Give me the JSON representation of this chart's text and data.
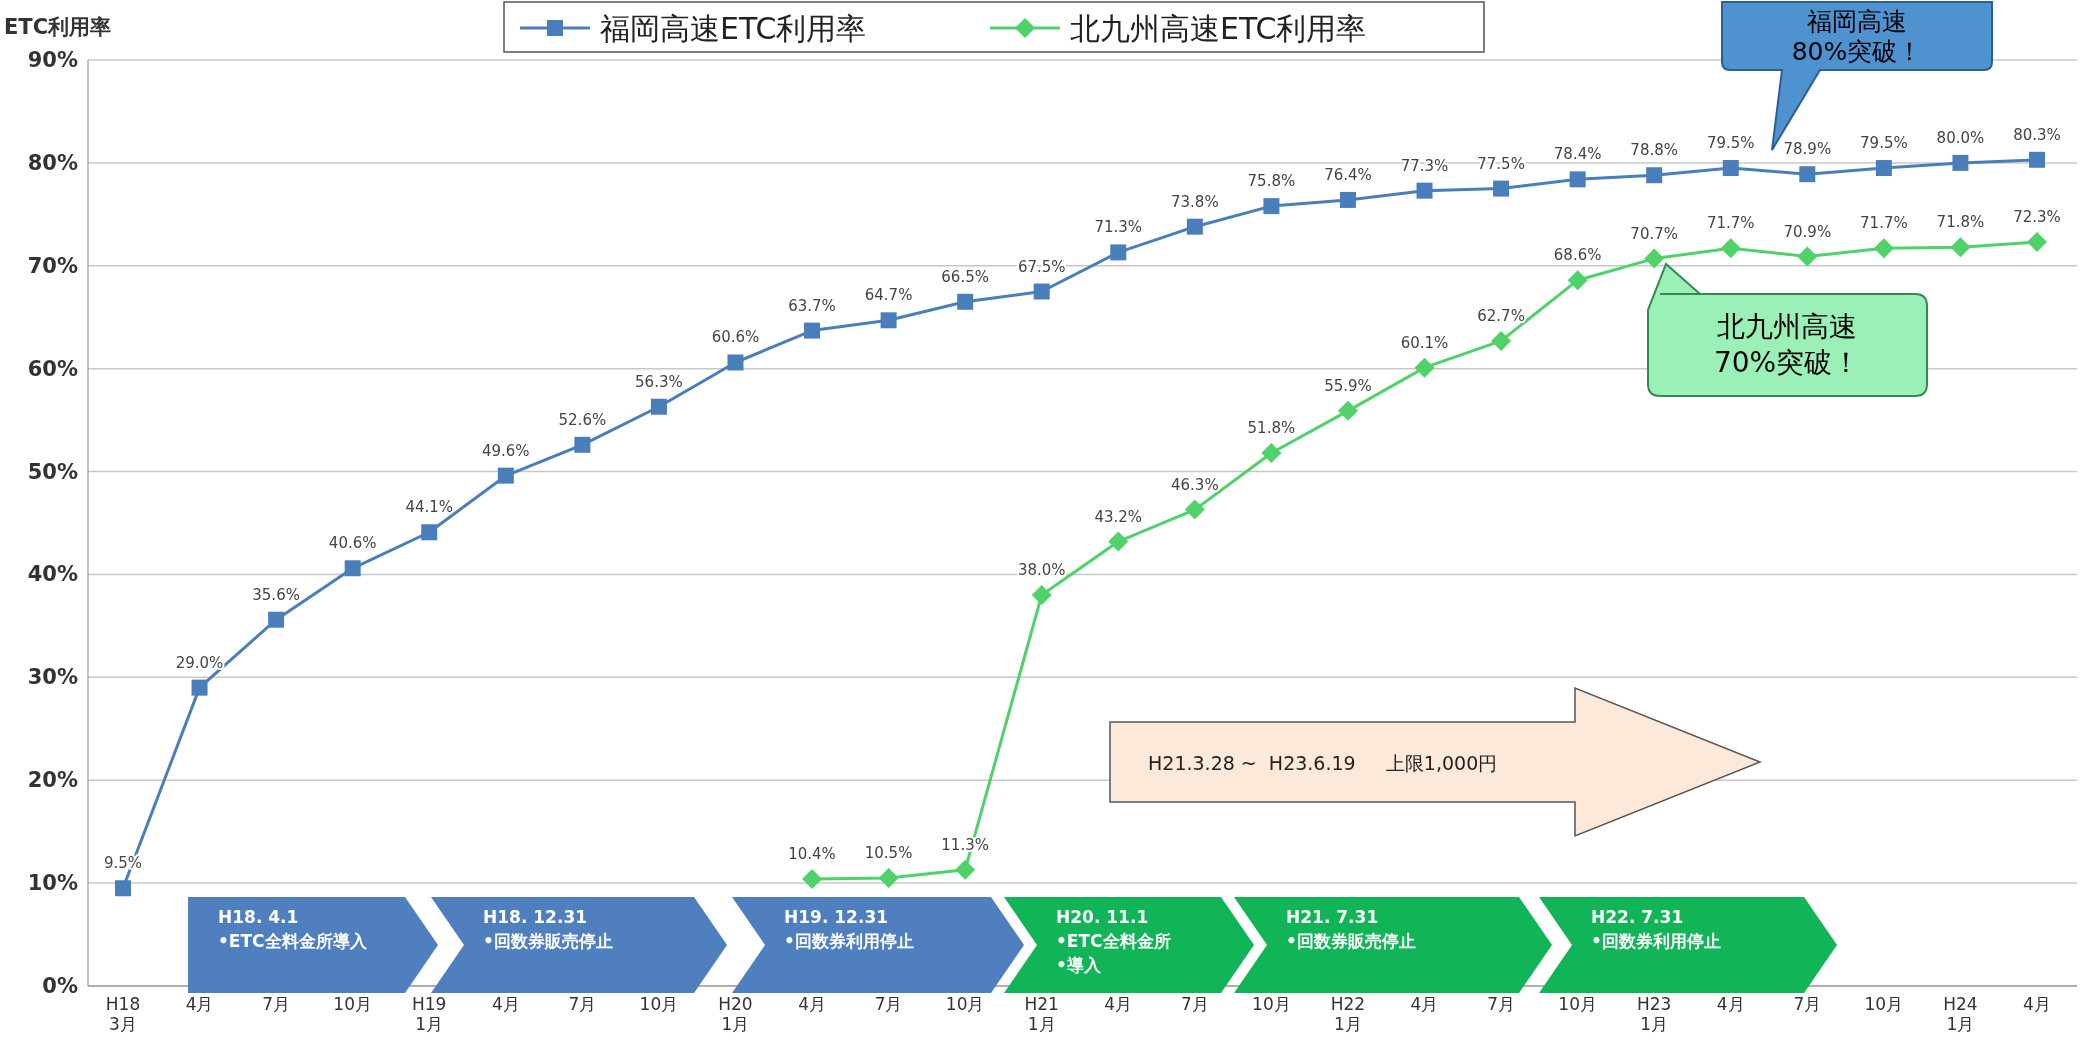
{
  "chart_data": {
    "type": "line",
    "ylabel": "ETC利用率",
    "categories": [
      "H18\n3月",
      "4月",
      "7月",
      "10月",
      "H19\n1月",
      "4月",
      "7月",
      "10月",
      "H20\n1月",
      "4月",
      "7月",
      "10月",
      "H21\n1月",
      "4月",
      "7月",
      "10月",
      "H22\n1月",
      "4月",
      "7月",
      "10月",
      "H23\n1月",
      "4月",
      "7月",
      "10月",
      "H24\n1月",
      "4月"
    ],
    "series": [
      {
        "name": "福岡高速ETC利用率",
        "color": "#4a7ebb",
        "marker": "square",
        "values": [
          9.5,
          29.0,
          35.6,
          40.6,
          44.1,
          49.6,
          52.6,
          56.3,
          60.6,
          63.7,
          64.7,
          66.5,
          67.5,
          71.3,
          73.8,
          75.8,
          76.4,
          77.3,
          77.5,
          78.4,
          78.8,
          79.5,
          78.9,
          79.5,
          80.0,
          80.3
        ],
        "value_labels": [
          "9.5%",
          "29.0%",
          "35.6%",
          "40.6%",
          "44.1%",
          "49.6%",
          "52.6%",
          "56.3%",
          "60.6%",
          "63.7%",
          "64.7%",
          "66.5%",
          "67.5%",
          "71.3%",
          "73.8%",
          "75.8%",
          "76.4%",
          "77.3%",
          "77.5%",
          "78.4%",
          "78.8%",
          "79.5%",
          "78.9%",
          "79.5%",
          "80.0%",
          "80.3%"
        ]
      },
      {
        "name": "北九州高速ETC利用率",
        "color": "#4fd26a",
        "marker": "diamond",
        "values": [
          null,
          null,
          null,
          null,
          null,
          null,
          null,
          null,
          null,
          10.4,
          10.5,
          11.3,
          38.0,
          43.2,
          46.3,
          51.8,
          55.9,
          60.1,
          62.7,
          68.6,
          70.7,
          71.7,
          70.9,
          71.7,
          71.8,
          72.3
        ],
        "value_labels": [
          null,
          null,
          null,
          null,
          null,
          null,
          null,
          null,
          null,
          "10.4%",
          "10.5%",
          "11.3%",
          "38.0%",
          "43.2%",
          "46.3%",
          "51.8%",
          "55.9%",
          "60.1%",
          "62.7%",
          "68.6%",
          "70.7%",
          "71.7%",
          "70.9%",
          "71.7%",
          "71.8%",
          "72.3%"
        ]
      }
    ],
    "ylim": [
      0,
      90
    ],
    "yticks": [
      {
        "value": 0,
        "label": "0%"
      },
      {
        "value": 10,
        "label": "10%"
      },
      {
        "value": 20,
        "label": "20%"
      },
      {
        "value": 30,
        "label": "30%"
      },
      {
        "value": 40,
        "label": "40%"
      },
      {
        "value": 50,
        "label": "50%"
      },
      {
        "value": 60,
        "label": "60%"
      },
      {
        "value": 70,
        "label": "70%"
      },
      {
        "value": 80,
        "label": "80%"
      },
      {
        "value": 90,
        "label": "90%"
      }
    ],
    "grid": "y",
    "legend": "top",
    "line_style": "solid",
    "annotations": [
      "H18.  4.1\n•ETC全料金所導入",
      "H18.  12.31\n•回数券販売停止",
      "H19.  12.31\n•回数券利用停止",
      "H20.  11.1\n•ETC全料金所\n•導入",
      "H21.  7.31\n•回数券販売停止",
      "H22.  7.31\n•回数券利用停止",
      "H21.3.28 ~  H23.6.19     上限1,000円",
      "福岡高速\n80%突破！",
      "北九州高速\n70%突破！"
    ]
  }
}
